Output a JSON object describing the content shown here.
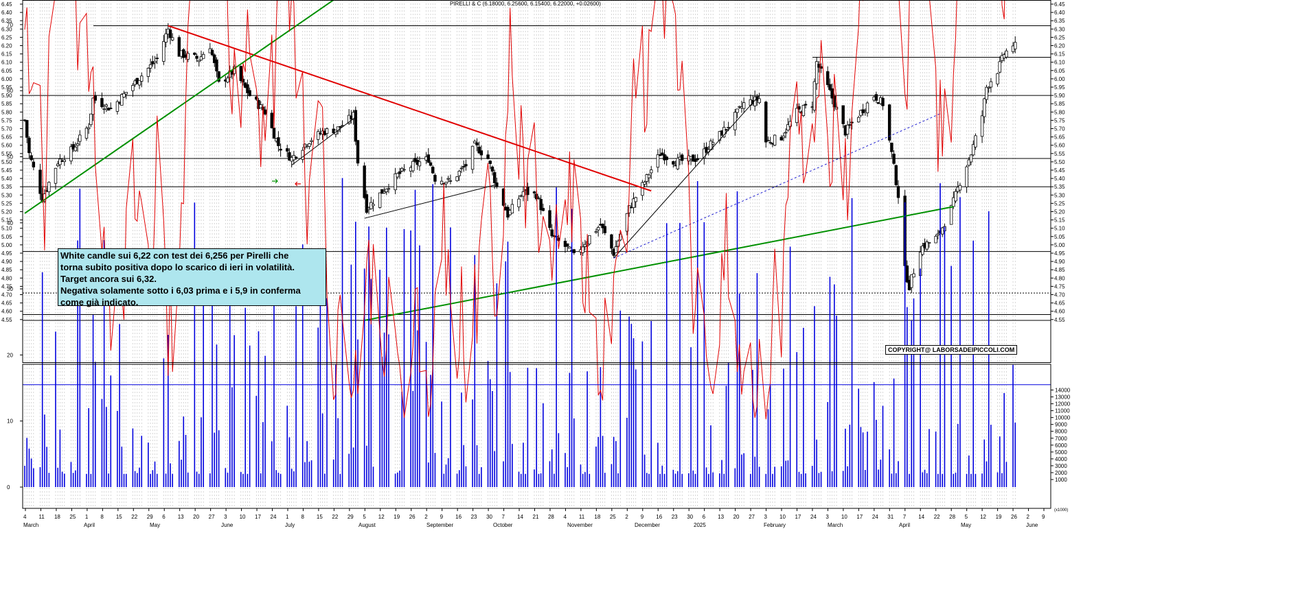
{
  "header": {
    "title": "PIRELLI & C (6.18000, 6.25600, 6.15400, 6.22000, +0.02600)"
  },
  "comment_box": {
    "lines": [
      "White candle sui 6,22 con test dei 6,256 per Pirelli che",
      "torna subito positiva dopo lo scarico di ieri in volatilità.",
      "Target ancora sui 6,32.",
      "Negativa solamente sotto i 6,03 prima e i 5,9 in conferma",
      "come già indicato."
    ]
  },
  "copyright": "COPYRIGHT@ LABORSADEIPICCOLI.COM",
  "volume_unit": "(x1000)",
  "chart_data": [
    {
      "type": "candlestick",
      "title": "PIRELLI & C (6.18000, 6.25600, 6.15400, 6.22000, +0.02600)",
      "last_candle": {
        "open": 6.18,
        "high": 6.256,
        "low": 6.154,
        "close": 6.22,
        "change": 0.026
      },
      "ylim": [
        4.525,
        6.475
      ],
      "y_ticks": [
        "4.55",
        "4.60",
        "4.65",
        "4.70",
        "4.75",
        "4.80",
        "4.85",
        "4.90",
        "4.95",
        "5.00",
        "5.05",
        "5.10",
        "5.15",
        "5.20",
        "5.25",
        "5.30",
        "5.35",
        "5.40",
        "5.45",
        "5.50",
        "5.55",
        "5.60",
        "5.65",
        "5.70",
        "5.75",
        "5.80",
        "5.85",
        "5.90",
        "5.95",
        "6.00",
        "6.05",
        "6.10",
        "6.15",
        "6.20",
        "6.25",
        "6.30",
        "6.35",
        "6.40",
        "6.45"
      ],
      "x_date_labels": [
        "4",
        "11",
        "18",
        "25",
        "1",
        "8",
        "15",
        "22",
        "29",
        "6",
        "13",
        "20",
        "27",
        "3",
        "10",
        "17",
        "24",
        "1",
        "8",
        "15",
        "22",
        "29",
        "5",
        "12",
        "19",
        "26",
        "2",
        "9",
        "16",
        "23",
        "30",
        "7",
        "14",
        "21",
        "28",
        "4",
        "11",
        "18",
        "25",
        "2",
        "9",
        "16",
        "23",
        "30",
        "6",
        "13",
        "20",
        "27",
        "3",
        "10",
        "17",
        "24",
        "3",
        "10",
        "17",
        "24",
        "31",
        "7",
        "14",
        "22",
        "28",
        "5",
        "12",
        "19",
        "26",
        "2",
        "9"
      ],
      "x_month_labels": [
        "March",
        "April",
        "May",
        "June",
        "July",
        "August",
        "September",
        "October",
        "November",
        "December",
        "2025",
        "February",
        "March",
        "April",
        "May",
        "June"
      ],
      "x_range": [
        "2024-03-04",
        "2025-06-09"
      ],
      "horizontal_levels": [
        6.32,
        6.13,
        5.9,
        5.52,
        5.35,
        4.96,
        4.71,
        4.58,
        4.545
      ],
      "trendlines": [
        {
          "color": "#e00000",
          "from": [
            "2024-05-08",
            6.32
          ],
          "to": [
            "2024-12-13",
            5.325
          ]
        },
        {
          "color": "#009000",
          "from": [
            "2024-03-04",
            5.19
          ],
          "to": [
            "2024-07-22",
            6.475
          ]
        },
        {
          "color": "#009000",
          "from": [
            "2024-08-05",
            4.545
          ],
          "to": [
            "2025-04-29",
            5.23
          ]
        },
        {
          "color": "#000000",
          "from": [
            "2024-07-03",
            5.48
          ],
          "to": [
            "2024-08-01",
            5.77
          ]
        },
        {
          "color": "#000000",
          "from": [
            "2024-08-05",
            5.16
          ],
          "to": [
            "2024-10-03",
            5.36
          ]
        },
        {
          "color": "#000000",
          "from": [
            "2024-11-26",
            4.92
          ],
          "to": [
            "2025-01-31",
            5.9
          ]
        },
        {
          "color": "#2020d0",
          "dashed": true,
          "from": [
            "2024-11-26",
            4.92
          ],
          "to": [
            "2025-04-23",
            5.79
          ]
        }
      ],
      "colors": {
        "candle": "#000000",
        "up_body": "#ffffff",
        "down_body": "#000000",
        "grid": "#bbbbbb"
      }
    },
    {
      "type": "line+bar",
      "ylim": [
        0,
        100
      ],
      "y_ticks_left": [
        "0",
        "10",
        "20",
        "30",
        "40",
        "50",
        "60",
        "70",
        "80",
        "90",
        "100"
      ],
      "y_ticks_right": [
        "1000",
        "2000",
        "3000",
        "4000",
        "5000",
        "6000",
        "7000",
        "8000",
        "9000",
        "10000",
        "11000",
        "12000",
        "13000",
        "14000"
      ],
      "volume_unit": "(x1000)",
      "series": [
        {
          "kind": "oscillator",
          "color": "#e00000"
        },
        {
          "kind": "volume_bars",
          "color": "#0000dd"
        }
      ],
      "reference_levels": [
        96,
        15.5
      ]
    }
  ]
}
